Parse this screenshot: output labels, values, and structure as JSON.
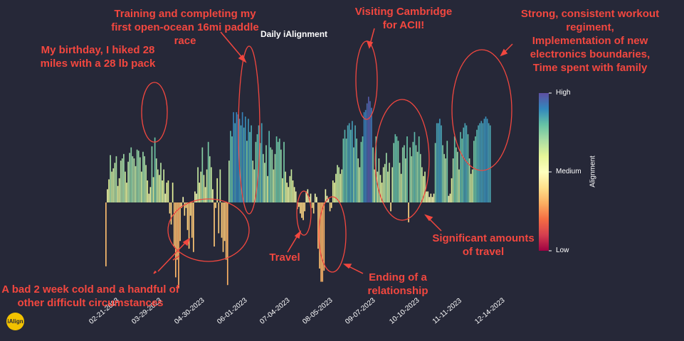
{
  "chart_data": {
    "type": "bar",
    "title": "Daily iAlignment",
    "xlabel": "",
    "ylabel": "",
    "x_tick_labels": [
      "02-21-2023",
      "03-29-2023",
      "04-30-2023",
      "06-01-2023",
      "07-04-2023",
      "08-05-2023",
      "09-07-2023",
      "10-10-2023",
      "11-11-2023",
      "12-14-2023"
    ],
    "value_range_note": "",
    "ylim": [
      -1,
      1
    ],
    "grid": false,
    "legend": "none",
    "colorbar": {
      "title": "Alignment",
      "ticks": [
        "High",
        "Medium",
        "Low"
      ],
      "colormap": "Spectral"
    },
    "values": [
      -0.58,
      0.12,
      0.21,
      0.43,
      0.28,
      0.31,
      0.36,
      0.42,
      0.15,
      0.22,
      0.38,
      0.4,
      0.44,
      0.28,
      0.18,
      0.37,
      0.45,
      0.5,
      0.42,
      0.4,
      0.33,
      0.48,
      0.47,
      0.41,
      0.28,
      0.46,
      0.42,
      0.34,
      0.2,
      0.08,
      0.14,
      0.51,
      0.23,
      0.59,
      0.4,
      0.3,
      0.25,
      0.36,
      0.2,
      0.3,
      0.08,
      0.18,
      0.2,
      -0.1,
      -0.2,
      0.18,
      -0.4,
      -0.68,
      -0.52,
      -0.78,
      -0.35,
      -0.05,
      0.05,
      -0.12,
      -0.05,
      -0.25,
      -0.42,
      -0.12,
      -0.32,
      -0.45,
      0.1,
      0.08,
      0.32,
      0.18,
      0.28,
      0.5,
      0.25,
      0.14,
      0.3,
      0.55,
      0.42,
      0.32,
      0.12,
      -0.4,
      -0.05,
      0.22,
      -0.28,
      0.3,
      -0.32,
      -0.45,
      -0.35,
      -0.52,
      -0.75,
      0.38,
      0.65,
      0.6,
      0.82,
      0.72,
      0.82,
      0.8,
      0.76,
      0.7,
      0.82,
      0.68,
      0.78,
      0.56,
      0.76,
      0.64,
      0.7,
      0.38,
      0.3,
      0.55,
      0.62,
      0.7,
      0.54,
      0.72,
      0.44,
      0.36,
      0.52,
      0.24,
      0.65,
      0.5,
      0.48,
      0.3,
      0.44,
      0.6,
      0.55,
      0.58,
      0.48,
      0.22,
      0.55,
      0.28,
      0.18,
      0.14,
      0.24,
      0.3,
      0.2,
      0.14,
      0.1,
      -0.06,
      -0.04,
      -0.1,
      -0.14,
      -0.16,
      -0.08,
      0.1,
      0.12,
      0.05,
      0.08,
      -0.05,
      -0.1,
      0.08,
      0.05,
      -0.42,
      -0.6,
      -0.72,
      -0.72,
      -0.62,
      0.12,
      0.06,
      0.04,
      -0.08,
      -0.05,
      0.2,
      0.18,
      0.26,
      0.34,
      0.32,
      0.26,
      0.3,
      0.58,
      0.66,
      0.58,
      0.7,
      0.72,
      0.66,
      0.74,
      0.5,
      0.7,
      0.58,
      0.4,
      0.32,
      0.55,
      0.6,
      0.82,
      0.84,
      0.9,
      0.96,
      0.92,
      0.86,
      0.5,
      0.3,
      0.6,
      0.28,
      0.4,
      0.25,
      0.18,
      0.32,
      0.35,
      0.45,
      0.28,
      0.36,
      -0.08,
      0.32,
      0.54,
      0.62,
      0.6,
      0.56,
      0.36,
      0.26,
      0.5,
      0.52,
      0.4,
      0.6,
      -0.18,
      0.5,
      0.42,
      0.55,
      0.64,
      0.52,
      0.46,
      0.6,
      0.44,
      0.32,
      0.24,
      0.28,
      0.1,
      0.1,
      0.05,
      0.08,
      0.05,
      0.08,
      0.54,
      0.72,
      0.72,
      0.76,
      0.7,
      0.52,
      0.44,
      0.4,
      0.56,
      0.06,
      0.08,
      0.22,
      0.4,
      0.6,
      0.5,
      0.46,
      0.3,
      0.64,
      0.58,
      0.68,
      0.72,
      0.7,
      0.62,
      0.4,
      0.26,
      0.3,
      0.56,
      0.6,
      0.66,
      0.7,
      0.72,
      0.74,
      0.72,
      0.76,
      0.78,
      0.76,
      0.72,
      0.7
    ],
    "annotations": [
      "Training and completing my\nfirst open-ocean 16mi paddle race",
      "Visiting Cambridge\nfor ACII!",
      "Strong, consistent workout regiment,\nImplementation of new\nelectronics boundaries,\nTime spent with family",
      "My birthday, I hiked 28\nmiles with a 28 lb pack",
      "Travel",
      "Significant amounts\nof travel",
      "Ending of a\nrelationship",
      "A bad 2 week cold and a handful of\nother difficult circumstances"
    ]
  },
  "logo_text": "iAlign",
  "colors": {
    "background": "#262838",
    "annotation": "#f2473f"
  }
}
